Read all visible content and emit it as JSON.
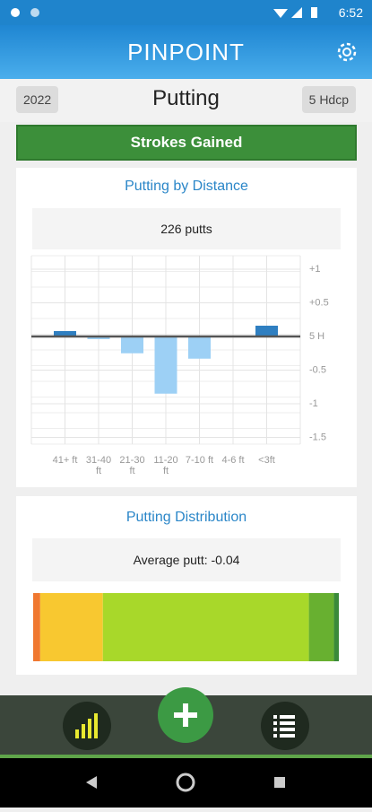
{
  "status_bar": {
    "time": "6:52"
  },
  "header": {
    "logo": "PINPOINT"
  },
  "toolbar": {
    "year": "2022",
    "title": "Putting",
    "handicap": "5 Hdcp"
  },
  "section_title": "Strokes Gained",
  "chart_data": [
    {
      "type": "bar",
      "title": "Putting by Distance",
      "subtitle": "226 putts",
      "categories": [
        "41+ ft",
        "31-40 ft",
        "21-30 ft",
        "11-20 ft",
        "7-10 ft",
        "4-6 ft",
        "<3ft"
      ],
      "values": [
        0.08,
        -0.04,
        -0.25,
        -0.85,
        -0.33,
        0,
        0.16
      ],
      "colors": [
        "#2f7fc1",
        "#9dd0f5",
        "#9dd0f5",
        "#9dd0f5",
        "#9dd0f5",
        "#9dd0f5",
        "#2f7fc1"
      ],
      "ylim": [
        -1.6,
        1.2
      ],
      "yticks": [
        {
          "value": 1,
          "label": "+1"
        },
        {
          "value": 0.5,
          "label": "+0.5"
        },
        {
          "value": 0,
          "label": "5 H"
        },
        -0.5,
        -1,
        -1.5
      ],
      "grid": true
    },
    {
      "type": "stacked-bar",
      "title": "Putting Distribution",
      "subtitle": "Average putt: -0.04",
      "values": [
        2.3,
        20.5,
        67.4,
        8.2,
        1.6
      ],
      "colors": [
        "#f07830",
        "#f8c830",
        "#a8d82a",
        "#68b030",
        "#3a8a3a"
      ],
      "xlim": [
        0,
        100
      ]
    }
  ]
}
